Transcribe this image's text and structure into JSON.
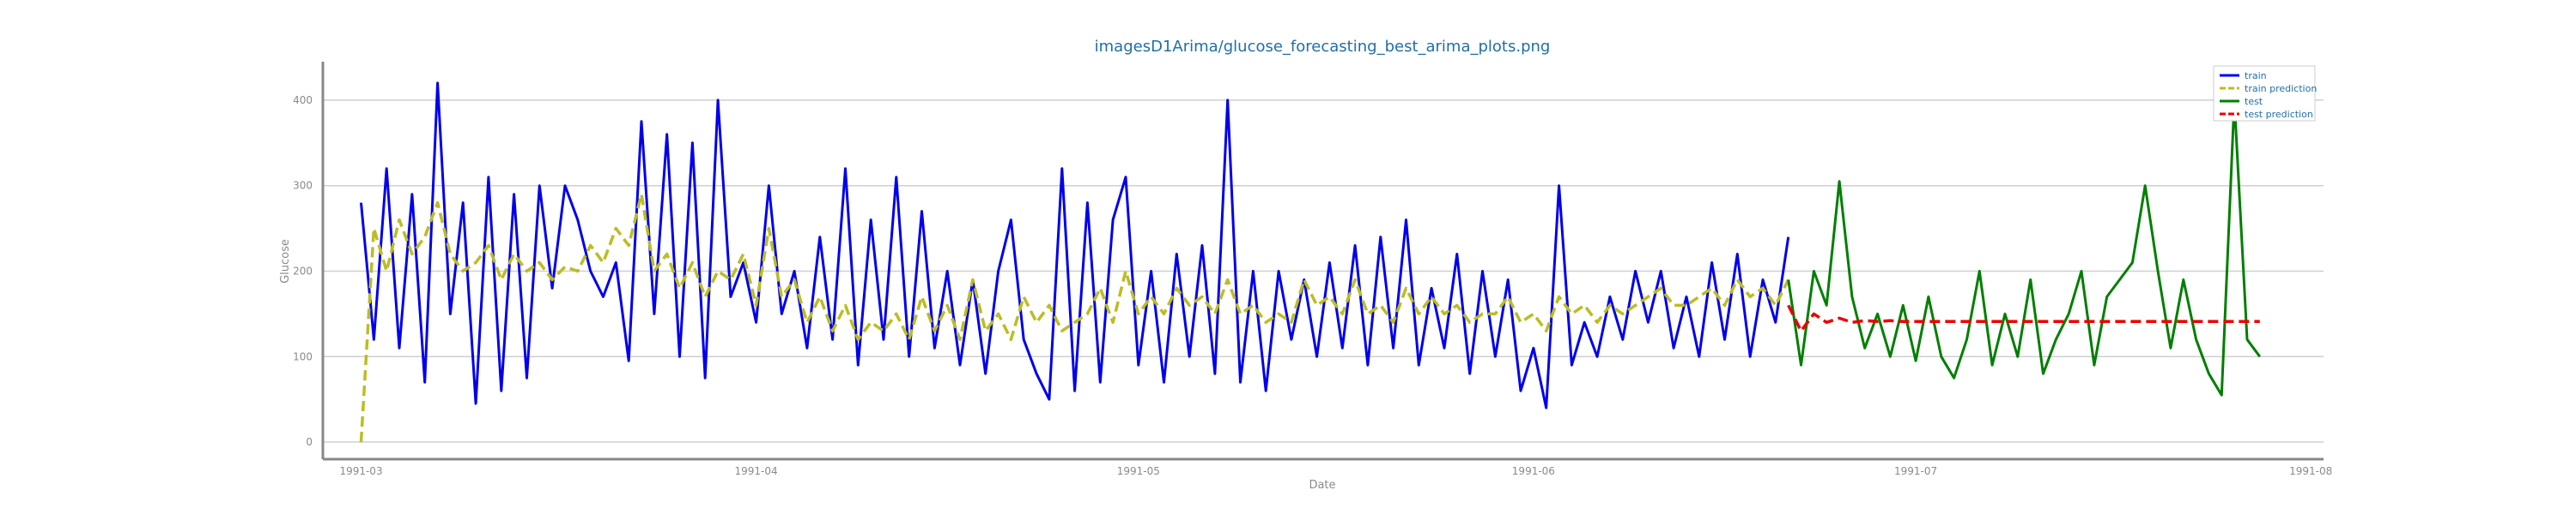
{
  "chart_data": {
    "type": "line",
    "title": "imagesD1Arima/glucose_forecasting_best_arima_plots.png",
    "xlabel": "Date",
    "ylabel": "Glucose",
    "x_ticks": [
      "1991-03",
      "1991-04",
      "1991-05",
      "1991-06",
      "1991-07",
      "1991-08"
    ],
    "y_ticks": [
      0,
      100,
      200,
      300,
      400
    ],
    "ylim": [
      -20,
      445
    ],
    "xlim": [
      "1991-02-26",
      "1991-08-02"
    ],
    "grid": "horizontal",
    "legend_position": "top-right",
    "series": [
      {
        "name": "train",
        "color": "#0000ee",
        "style": "solid",
        "x": [
          "1991-03-01",
          "1991-03-02",
          "1991-03-03",
          "1991-03-04",
          "1991-03-05",
          "1991-03-06",
          "1991-03-07",
          "1991-03-08",
          "1991-03-09",
          "1991-03-10",
          "1991-03-11",
          "1991-03-12",
          "1991-03-13",
          "1991-03-14",
          "1991-03-15",
          "1991-03-16",
          "1991-03-17",
          "1991-03-18",
          "1991-03-19",
          "1991-03-20",
          "1991-03-21",
          "1991-03-22",
          "1991-03-23",
          "1991-03-24",
          "1991-03-25",
          "1991-03-26",
          "1991-03-27",
          "1991-03-28",
          "1991-03-29",
          "1991-03-30",
          "1991-03-31",
          "1991-04-01",
          "1991-04-02",
          "1991-04-03",
          "1991-04-04",
          "1991-04-05",
          "1991-04-06",
          "1991-04-07",
          "1991-04-08",
          "1991-04-09",
          "1991-04-10",
          "1991-04-11",
          "1991-04-12",
          "1991-04-13",
          "1991-04-14",
          "1991-04-15",
          "1991-04-16",
          "1991-04-17",
          "1991-04-18",
          "1991-04-19",
          "1991-04-20",
          "1991-04-21",
          "1991-04-22",
          "1991-04-23",
          "1991-04-24",
          "1991-04-25",
          "1991-04-26",
          "1991-04-27",
          "1991-04-28",
          "1991-04-29",
          "1991-04-30",
          "1991-05-01",
          "1991-05-02",
          "1991-05-03",
          "1991-05-04",
          "1991-05-05",
          "1991-05-06",
          "1991-05-07",
          "1991-05-08",
          "1991-05-09",
          "1991-05-10",
          "1991-05-11",
          "1991-05-12",
          "1991-05-13",
          "1991-05-14",
          "1991-05-15",
          "1991-05-16",
          "1991-05-17",
          "1991-05-18",
          "1991-05-19",
          "1991-05-20",
          "1991-05-21",
          "1991-05-22",
          "1991-05-23",
          "1991-05-24",
          "1991-05-25",
          "1991-05-26",
          "1991-05-27",
          "1991-05-28",
          "1991-05-29",
          "1991-05-30",
          "1991-05-31",
          "1991-06-01",
          "1991-06-02",
          "1991-06-03",
          "1991-06-04",
          "1991-06-05",
          "1991-06-06",
          "1991-06-07",
          "1991-06-08",
          "1991-06-09",
          "1991-06-10",
          "1991-06-11",
          "1991-06-12",
          "1991-06-13",
          "1991-06-14",
          "1991-06-15",
          "1991-06-16",
          "1991-06-17",
          "1991-06-18",
          "1991-06-19",
          "1991-06-20",
          "1991-06-21"
        ],
        "values": [
          280,
          120,
          320,
          110,
          290,
          70,
          420,
          150,
          280,
          45,
          310,
          60,
          290,
          75,
          300,
          180,
          300,
          260,
          200,
          170,
          210,
          95,
          375,
          150,
          360,
          100,
          350,
          75,
          400,
          170,
          210,
          140,
          300,
          150,
          200,
          110,
          240,
          120,
          320,
          90,
          260,
          120,
          310,
          100,
          270,
          110,
          200,
          90,
          190,
          80,
          200,
          260,
          120,
          80,
          50,
          320,
          60,
          280,
          70,
          260,
          310,
          90,
          200,
          70,
          220,
          100,
          230,
          80,
          400,
          70,
          200,
          60,
          200,
          120,
          190,
          100,
          210,
          110,
          230,
          90,
          240,
          110,
          260,
          90,
          180,
          110,
          220,
          80,
          200,
          100,
          190,
          60,
          110,
          40,
          300,
          90,
          140,
          100,
          170,
          120,
          200,
          140,
          200,
          110,
          170,
          100,
          210,
          120,
          220,
          100,
          190,
          140,
          240
        ]
      },
      {
        "name": "train prediction",
        "color": "#bcbd22",
        "style": "dashed",
        "x": [
          "1991-03-01",
          "1991-03-02",
          "1991-03-03",
          "1991-03-04",
          "1991-03-05",
          "1991-03-06",
          "1991-03-07",
          "1991-03-08",
          "1991-03-09",
          "1991-03-10",
          "1991-03-11",
          "1991-03-12",
          "1991-03-13",
          "1991-03-14",
          "1991-03-15",
          "1991-03-16",
          "1991-03-17",
          "1991-03-18",
          "1991-03-19",
          "1991-03-20",
          "1991-03-21",
          "1991-03-22",
          "1991-03-23",
          "1991-03-24",
          "1991-03-25",
          "1991-03-26",
          "1991-03-27",
          "1991-03-28",
          "1991-03-29",
          "1991-03-30",
          "1991-03-31",
          "1991-04-01",
          "1991-04-02",
          "1991-04-03",
          "1991-04-04",
          "1991-04-05",
          "1991-04-06",
          "1991-04-07",
          "1991-04-08",
          "1991-04-09",
          "1991-04-10",
          "1991-04-11",
          "1991-04-12",
          "1991-04-13",
          "1991-04-14",
          "1991-04-15",
          "1991-04-16",
          "1991-04-17",
          "1991-04-18",
          "1991-04-19",
          "1991-04-20",
          "1991-04-21",
          "1991-04-22",
          "1991-04-23",
          "1991-04-24",
          "1991-04-25",
          "1991-04-26",
          "1991-04-27",
          "1991-04-28",
          "1991-04-29",
          "1991-04-30",
          "1991-05-01",
          "1991-05-02",
          "1991-05-03",
          "1991-05-04",
          "1991-05-05",
          "1991-05-06",
          "1991-05-07",
          "1991-05-08",
          "1991-05-09",
          "1991-05-10",
          "1991-05-11",
          "1991-05-12",
          "1991-05-13",
          "1991-05-14",
          "1991-05-15",
          "1991-05-16",
          "1991-05-17",
          "1991-05-18",
          "1991-05-19",
          "1991-05-20",
          "1991-05-21",
          "1991-05-22",
          "1991-05-23",
          "1991-05-24",
          "1991-05-25",
          "1991-05-26",
          "1991-05-27",
          "1991-05-28",
          "1991-05-29",
          "1991-05-30",
          "1991-05-31",
          "1991-06-01",
          "1991-06-02",
          "1991-06-03",
          "1991-06-04",
          "1991-06-05",
          "1991-06-06",
          "1991-06-07",
          "1991-06-08",
          "1991-06-09",
          "1991-06-10",
          "1991-06-11",
          "1991-06-12",
          "1991-06-13",
          "1991-06-14",
          "1991-06-15",
          "1991-06-16",
          "1991-06-17",
          "1991-06-18",
          "1991-06-19",
          "1991-06-20",
          "1991-06-21"
        ],
        "values": [
          0,
          250,
          200,
          260,
          220,
          240,
          280,
          220,
          200,
          210,
          230,
          190,
          220,
          200,
          210,
          190,
          205,
          200,
          230,
          210,
          250,
          230,
          290,
          200,
          220,
          180,
          210,
          170,
          200,
          190,
          220,
          160,
          250,
          170,
          190,
          140,
          170,
          130,
          160,
          120,
          140,
          130,
          150,
          120,
          170,
          130,
          160,
          120,
          190,
          130,
          150,
          120,
          170,
          140,
          160,
          130,
          140,
          150,
          180,
          140,
          200,
          150,
          170,
          150,
          180,
          160,
          170,
          150,
          190,
          150,
          160,
          140,
          150,
          140,
          190,
          160,
          170,
          150,
          190,
          150,
          160,
          140,
          180,
          150,
          170,
          150,
          160,
          140,
          150,
          150,
          170,
          140,
          150,
          130,
          170,
          150,
          160,
          140,
          160,
          150,
          160,
          170,
          180,
          160,
          160,
          170,
          180,
          160,
          190,
          170,
          180,
          160,
          190
        ]
      },
      {
        "name": "test",
        "color": "#007f00",
        "style": "solid",
        "x": [
          "1991-06-21",
          "1991-06-22",
          "1991-06-23",
          "1991-06-24",
          "1991-06-25",
          "1991-06-26",
          "1991-06-27",
          "1991-06-28",
          "1991-06-29",
          "1991-06-30",
          "1991-07-01",
          "1991-07-02",
          "1991-07-03",
          "1991-07-04",
          "1991-07-05",
          "1991-07-06",
          "1991-07-07",
          "1991-07-08",
          "1991-07-09",
          "1991-07-10",
          "1991-07-11",
          "1991-07-12",
          "1991-07-13",
          "1991-07-14",
          "1991-07-15",
          "1991-07-16",
          "1991-07-17",
          "1991-07-18",
          "1991-07-19",
          "1991-07-20",
          "1991-07-21",
          "1991-07-22",
          "1991-07-23",
          "1991-07-24",
          "1991-07-25",
          "1991-07-26",
          "1991-07-27",
          "1991-07-28"
        ],
        "values": [
          190,
          90,
          200,
          160,
          305,
          170,
          110,
          150,
          100,
          160,
          95,
          170,
          100,
          75,
          120,
          200,
          90,
          150,
          100,
          190,
          80,
          120,
          150,
          200,
          90,
          170,
          190,
          210,
          300,
          200,
          110,
          190,
          120,
          80,
          55,
          400,
          120,
          100
        ]
      },
      {
        "name": "test prediction",
        "color": "#ee0000",
        "style": "dashed",
        "x": [
          "1991-06-21",
          "1991-06-22",
          "1991-06-23",
          "1991-06-24",
          "1991-06-25",
          "1991-06-26",
          "1991-06-27",
          "1991-06-28",
          "1991-06-29",
          "1991-06-30",
          "1991-07-01",
          "1991-07-05",
          "1991-07-10",
          "1991-07-15",
          "1991-07-20",
          "1991-07-25",
          "1991-07-28"
        ],
        "values": [
          160,
          130,
          150,
          140,
          145,
          140,
          142,
          141,
          142,
          141,
          141,
          141,
          141,
          141,
          141,
          141,
          141
        ]
      }
    ]
  }
}
